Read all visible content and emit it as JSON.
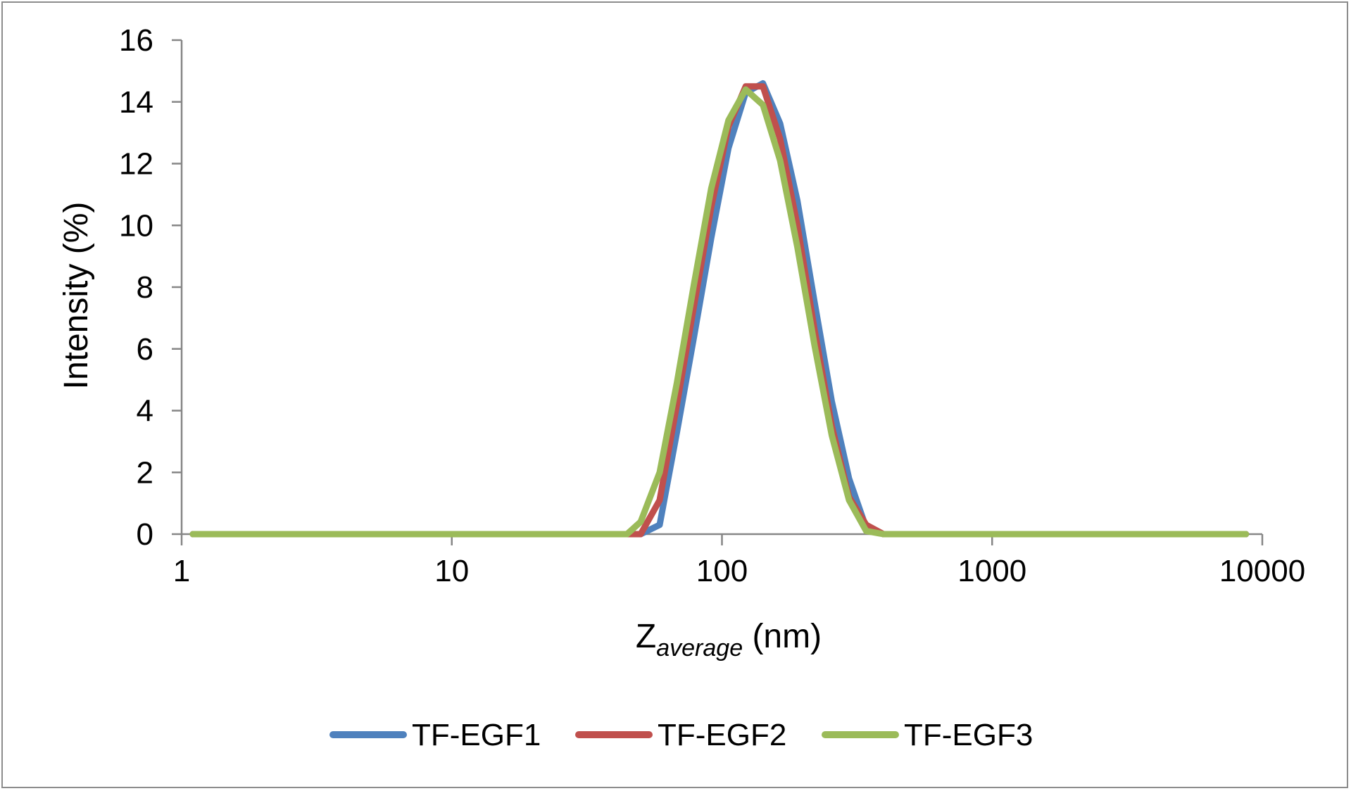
{
  "chart_data": {
    "type": "line",
    "xscale": "log",
    "xlabel_main": "Z",
    "xlabel_sub": "average",
    "xlabel_unit": " (nm)",
    "ylabel": "Intensity (%)",
    "xlim": [
      1,
      10000
    ],
    "ylim": [
      0,
      16
    ],
    "yticks": [
      0,
      2,
      4,
      6,
      8,
      10,
      12,
      14,
      16
    ],
    "xticks": [
      1,
      10,
      100,
      1000,
      10000
    ],
    "legend_position": "bottom",
    "series": [
      {
        "name": "TF-EGF1",
        "color": "#4f81bd",
        "points": [
          [
            1.1,
            0
          ],
          [
            10,
            0
          ],
          [
            45,
            0
          ],
          [
            50,
            0
          ],
          [
            58.8,
            0.3
          ],
          [
            68.1,
            3.3
          ],
          [
            78.8,
            6.4
          ],
          [
            91.3,
            9.6
          ],
          [
            105.7,
            12.5
          ],
          [
            122.4,
            14.3
          ],
          [
            141.8,
            14.6
          ],
          [
            164.2,
            13.3
          ],
          [
            190.1,
            10.8
          ],
          [
            220.2,
            7.5
          ],
          [
            255,
            4.3
          ],
          [
            295.3,
            1.8
          ],
          [
            342,
            0.2
          ],
          [
            396,
            0
          ],
          [
            1000,
            0
          ],
          [
            8700,
            0
          ]
        ]
      },
      {
        "name": "TF-EGF2",
        "color": "#c0504d",
        "points": [
          [
            1.1,
            0
          ],
          [
            10,
            0
          ],
          [
            45,
            0
          ],
          [
            50,
            0
          ],
          [
            58.8,
            1.1
          ],
          [
            68.1,
            4.2
          ],
          [
            78.8,
            7.4
          ],
          [
            91.3,
            10.6
          ],
          [
            105.7,
            13.2
          ],
          [
            122.4,
            14.5
          ],
          [
            141.8,
            14.5
          ],
          [
            164.2,
            12.8
          ],
          [
            190.1,
            10.0
          ],
          [
            220.2,
            6.6
          ],
          [
            255,
            3.5
          ],
          [
            295.3,
            1.2
          ],
          [
            342,
            0.3
          ],
          [
            396,
            0
          ],
          [
            1000,
            0
          ],
          [
            8700,
            0
          ]
        ]
      },
      {
        "name": "TF-EGF3",
        "color": "#9bbb59",
        "points": [
          [
            1.1,
            0
          ],
          [
            10,
            0
          ],
          [
            44.5,
            0
          ],
          [
            50,
            0.4
          ],
          [
            58.8,
            2.0
          ],
          [
            68.1,
            4.9
          ],
          [
            78.8,
            8.1
          ],
          [
            91.3,
            11.2
          ],
          [
            105.7,
            13.4
          ],
          [
            122.4,
            14.4
          ],
          [
            141.8,
            13.9
          ],
          [
            164.2,
            12.1
          ],
          [
            190.1,
            9.3
          ],
          [
            220.2,
            6.1
          ],
          [
            255,
            3.2
          ],
          [
            295.3,
            1.1
          ],
          [
            342,
            0.1
          ],
          [
            396,
            0
          ],
          [
            1000,
            0
          ],
          [
            8700,
            0
          ]
        ]
      }
    ]
  }
}
